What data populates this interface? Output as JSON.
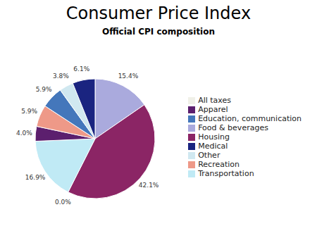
{
  "chart_data": {
    "type": "pie",
    "title": "Consumer Price Index",
    "subtitle": "Official CPI composition",
    "categories": [
      "Food & beverages",
      "Housing",
      "All taxes",
      "Transportation",
      "Apparel",
      "Recreation",
      "Education, communication",
      "Other",
      "Medical"
    ],
    "values": [
      15.4,
      42.1,
      0.0,
      16.9,
      4.0,
      5.9,
      5.9,
      3.8,
      6.1
    ],
    "value_labels": [
      "15.4%",
      "42.1%",
      "0.0%",
      "16.9%",
      "4.0%",
      "5.9%",
      "5.9%",
      "3.8%",
      "6.1%"
    ],
    "colors": [
      "#aaaadd",
      "#8b2565",
      "#f0f0e8",
      "#c0eaf5",
      "#5c1f6e",
      "#ee9988",
      "#4477bb",
      "#d0e8f0",
      "#1a2480"
    ],
    "data_labels": true,
    "legend": "right"
  }
}
